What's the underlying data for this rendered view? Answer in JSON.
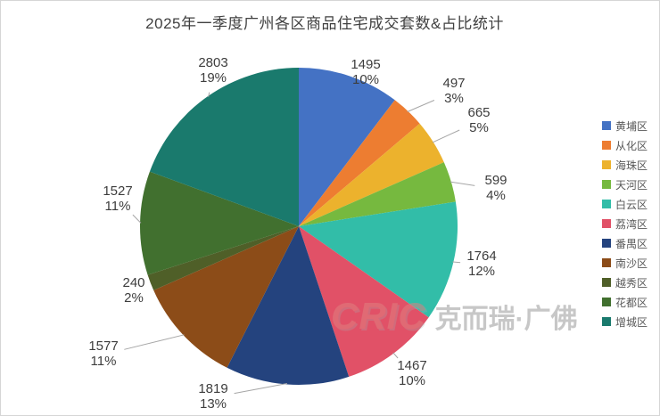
{
  "page": {
    "background": "#ffffff",
    "border_color": "#d6d6d6"
  },
  "chart_data": {
    "type": "pie",
    "title": "2025年一季度广州各区商品住宅成交套数&占比统计",
    "categories": [
      "黄埔区",
      "从化区",
      "海珠区",
      "天河区",
      "白云区",
      "荔湾区",
      "番禺区",
      "南沙区",
      "越秀区",
      "花都区",
      "增城区"
    ],
    "values": [
      1495,
      497,
      665,
      599,
      1764,
      1467,
      1819,
      1577,
      240,
      1527,
      2803
    ],
    "percent_labels": [
      "10%",
      "3%",
      "5%",
      "4%",
      "12%",
      "10%",
      "13%",
      "11%",
      "2%",
      "11%",
      "19%"
    ],
    "colors": [
      "#4472c4",
      "#ed7d31",
      "#ecb22d",
      "#76b93f",
      "#32bda8",
      "#e15167",
      "#24437e",
      "#8c4c18",
      "#4f5f28",
      "#41702f",
      "#1a7a6d"
    ],
    "legend_position": "right",
    "label_color": "#3d3d3d",
    "leader_line_color": "#a6a6a6",
    "start_angle_deg": 0,
    "direction": "clockwise"
  },
  "watermark": {
    "brand": "CRIC",
    "name": "克而瑞·广佛"
  }
}
